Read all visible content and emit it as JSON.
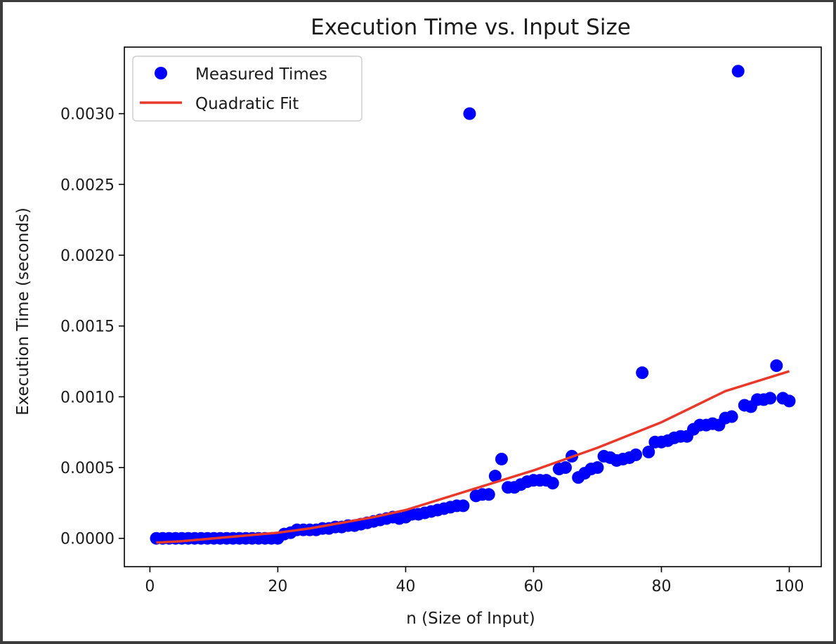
{
  "chart_data": {
    "type": "scatter",
    "title": "Execution Time vs. Input Size",
    "xlabel": "n (Size of Input)",
    "ylabel": "Execution Time (seconds)",
    "xlim": [
      -4,
      105
    ],
    "ylim": [
      -0.0002,
      0.00347
    ],
    "xticks": [
      0,
      20,
      40,
      60,
      80,
      100
    ],
    "xtick_labels": [
      "0",
      "20",
      "40",
      "60",
      "80",
      "100"
    ],
    "yticks": [
      0,
      0.0005,
      0.001,
      0.0015,
      0.002,
      0.0025,
      0.003
    ],
    "ytick_labels": [
      "0.0000",
      "0.0005",
      "0.0010",
      "0.0015",
      "0.0020",
      "0.0025",
      "0.0030"
    ],
    "grid": false,
    "legend": {
      "position": "top-left",
      "entries": [
        {
          "label": "Measured Times",
          "marker": "circle",
          "color": "#0000ff"
        },
        {
          "label": "Quadratic Fit",
          "marker": "line",
          "color": "#e8392a"
        }
      ]
    },
    "series": [
      {
        "name": "Measured Times",
        "kind": "scatter",
        "color": "#0000ff",
        "x": [
          1,
          2,
          3,
          4,
          5,
          6,
          7,
          8,
          9,
          10,
          11,
          12,
          13,
          14,
          15,
          16,
          17,
          18,
          19,
          20,
          21,
          22,
          23,
          24,
          25,
          26,
          27,
          28,
          29,
          30,
          31,
          32,
          33,
          34,
          35,
          36,
          37,
          38,
          39,
          40,
          41,
          42,
          43,
          44,
          45,
          46,
          47,
          48,
          49,
          50,
          51,
          52,
          53,
          54,
          55,
          56,
          57,
          58,
          59,
          60,
          61,
          62,
          63,
          64,
          65,
          66,
          67,
          68,
          69,
          70,
          71,
          72,
          73,
          74,
          75,
          76,
          77,
          78,
          79,
          80,
          81,
          82,
          83,
          84,
          85,
          86,
          87,
          88,
          89,
          90,
          91,
          92,
          93,
          94,
          95,
          96,
          97,
          98,
          99,
          100
        ],
        "y": [
          0.0,
          0.0,
          0.0,
          0.0,
          0.0,
          0.0,
          0.0,
          0.0,
          0.0,
          0.0,
          0.0,
          0.0,
          0.0,
          0.0,
          0.0,
          0.0,
          0.0,
          0.0,
          0.0,
          0.0,
          3e-05,
          4e-05,
          6e-05,
          6e-05,
          6e-05,
          6e-05,
          7e-05,
          7e-05,
          8e-05,
          8e-05,
          9e-05,
          9e-05,
          0.0001,
          0.00011,
          0.00012,
          0.00013,
          0.00014,
          0.00015,
          0.00014,
          0.00015,
          0.00017,
          0.00017,
          0.00018,
          0.00019,
          0.0002,
          0.00021,
          0.00022,
          0.00023,
          0.00023,
          0.003,
          0.0003,
          0.00031,
          0.00031,
          0.00044,
          0.00056,
          0.00036,
          0.00036,
          0.00038,
          0.0004,
          0.00041,
          0.00041,
          0.00041,
          0.00039,
          0.00049,
          0.0005,
          0.00058,
          0.00043,
          0.00046,
          0.00049,
          0.0005,
          0.00058,
          0.00057,
          0.00055,
          0.00056,
          0.00057,
          0.00059,
          0.00117,
          0.00061,
          0.00068,
          0.00068,
          0.00069,
          0.00071,
          0.00072,
          0.00072,
          0.00077,
          0.0008,
          0.0008,
          0.00081,
          0.0008,
          0.00085,
          0.00086,
          0.0033,
          0.00094,
          0.00093,
          0.00098,
          0.00098,
          0.00099,
          0.00122,
          0.00099,
          0.00097
        ]
      },
      {
        "name": "Quadratic Fit",
        "kind": "line",
        "color": "#e8392a",
        "x": [
          1,
          5,
          10,
          15,
          20,
          25,
          30,
          35,
          40,
          45,
          50,
          55,
          60,
          65,
          70,
          75,
          80,
          85,
          90,
          95,
          100
        ],
        "y": [
          -3e-05,
          -2e-05,
          0.0,
          2e-05,
          4e-05,
          7e-05,
          0.00011,
          0.00015,
          0.0002,
          0.00027,
          0.00034,
          0.00041,
          0.00048,
          0.00056,
          0.00064,
          0.00073,
          0.00082,
          0.00093,
          0.00104,
          0.00111,
          0.00118
        ]
      }
    ]
  }
}
